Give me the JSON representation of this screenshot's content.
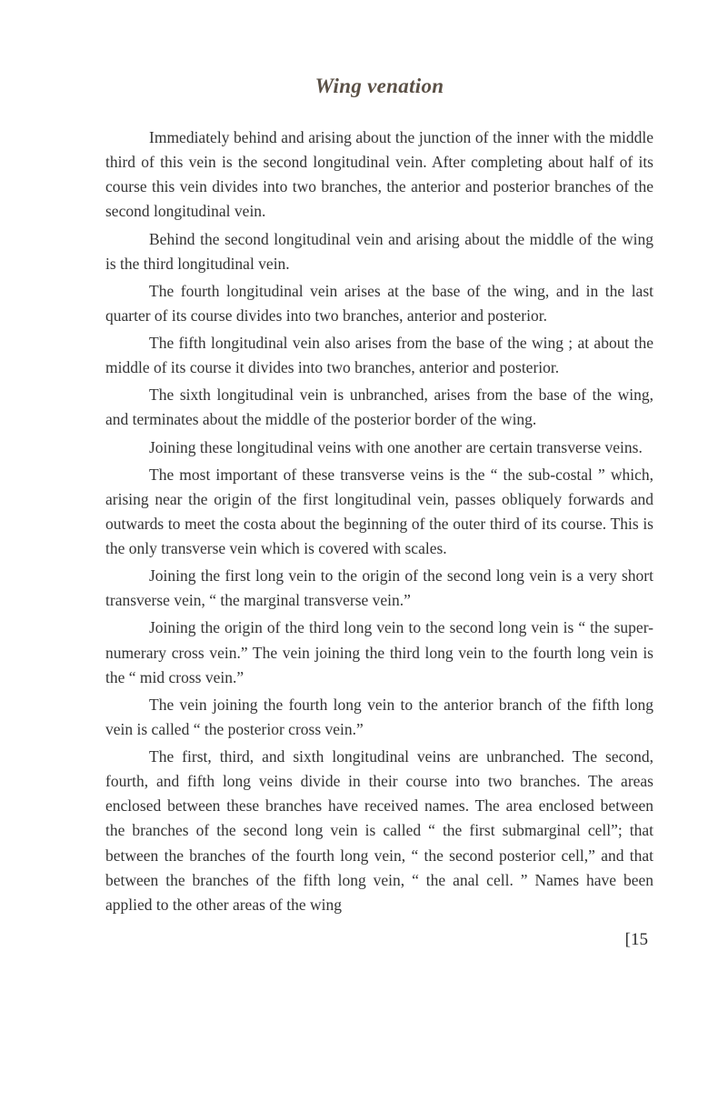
{
  "title": "Wing venation",
  "paragraphs": [
    "Immediately behind and arising about the junction of the inner with the middle third of this vein is the second longitudinal vein. After completing about half of its course this vein divides into two branches, the anterior and posterior branches of the second longitudinal vein.",
    "Behind the second longitudinal vein and arising about the middle of the wing is the third longitudinal vein.",
    "The fourth longitudinal vein arises at the base of the wing, and in the last quarter of its course divides into two branches, anterior and posterior.",
    "The fifth longitudinal vein also arises from the base of the wing ; at about the middle of its course it divides into two branches, anterior and posterior.",
    "The sixth longitudinal vein is unbranched, arises from the base of the wing, and terminates about the middle of the posterior border of the wing.",
    "Joining these longitudinal veins with one another are certain transverse veins.",
    "The most important of these transverse veins is the “ the sub-costal ” which, arising near the origin of the first longitudinal vein, passes obliquely forwards and outwards to meet the costa about the beginning of the outer third of its course. This is the only transverse vein which is covered with scales.",
    "Joining the first long vein to the origin of the second long vein is a very short transverse vein, “ the marginal transverse vein.”",
    "Joining the origin of the third long vein to the second long vein is “ the super-numerary cross vein.” The vein joining the third long vein to the fourth long vein is the “ mid cross vein.”",
    "The vein joining the fourth long vein to the anterior branch of the fifth long vein is called “ the posterior cross vein.”",
    "The first, third, and sixth longitudinal veins are unbranched. The second, fourth, and fifth long veins divide in their course into two branches. The areas enclosed between these branches have received names. The area enclosed between the branches of the second long vein is called “ the first submarginal cell”; that between the branches of the fourth long vein, “ the second posterior cell,” and that between the branches of the fifth long vein, “ the anal cell. ” Names have been applied to the other areas of the wing"
  ],
  "page_number": "[15"
}
